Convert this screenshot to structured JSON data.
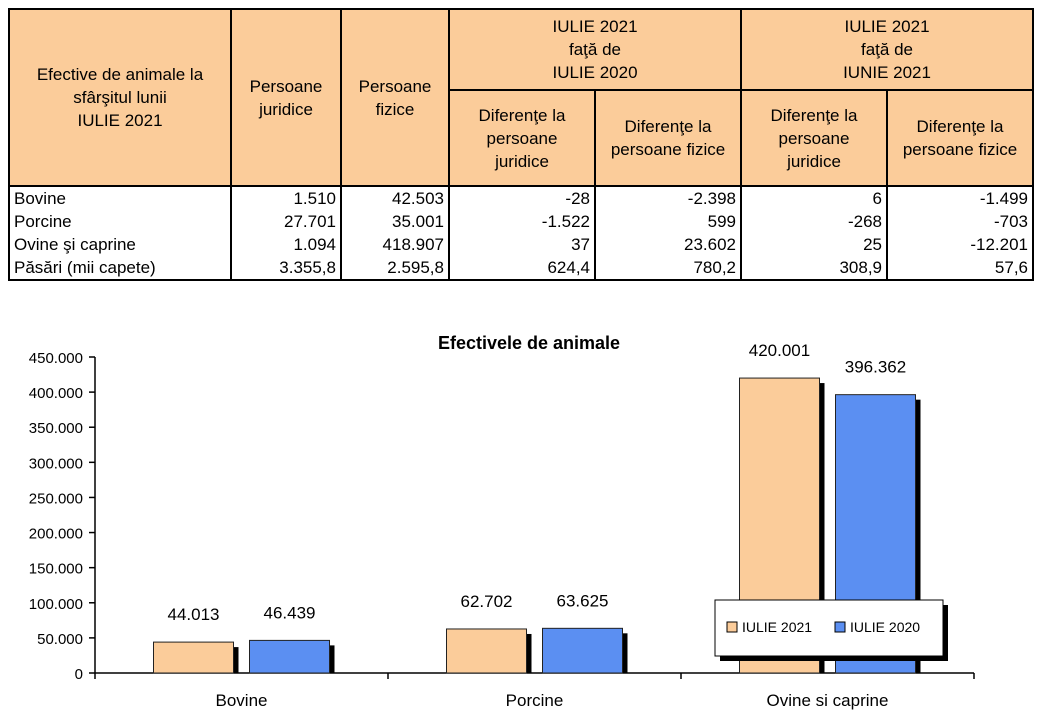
{
  "table": {
    "headers": {
      "row_label": "Efective de animale la\nsfârşitul lunii\nIULIE 2021",
      "persoane_juridice": "Persoane\njuridice",
      "persoane_fizice": "Persoane\nfizice",
      "group1": "IULIE 2021\nfaţă de\nIULIE 2020",
      "group2": "IULIE 2021\nfaţă de\nIUNIE 2021",
      "g1_juridice": "Diferenţe la\npersoane\njuridice",
      "g1_fizice": "Diferenţe la\npersoane fizice",
      "g2_juridice": "Diferenţe la\npersoane\njuridice",
      "g2_fizice": "Diferenţe la\npersoane fizice"
    },
    "rows": [
      {
        "label": "Bovine",
        "values": [
          "1.510",
          "42.503",
          "-28",
          "-2.398",
          "6",
          "-1.499"
        ]
      },
      {
        "label": "Porcine",
        "values": [
          "27.701",
          "35.001",
          "-1.522",
          "599",
          "-268",
          "-703"
        ]
      },
      {
        "label": "Ovine şi caprine",
        "values": [
          "1.094",
          "418.907",
          "37",
          "23.602",
          "25",
          "-12.201"
        ]
      },
      {
        "label": "Păsări (mii capete)",
        "values": [
          "3.355,8",
          "2.595,8",
          "624,4",
          "780,2",
          "308,9",
          "57,6"
        ]
      }
    ]
  },
  "chart_data": {
    "type": "bar",
    "title": "Efectivele de animale",
    "categories": [
      "Bovine",
      "Porcine",
      "Ovine si caprine"
    ],
    "series": [
      {
        "name": "IULIE 2021",
        "values": [
          44013,
          62702,
          420001
        ],
        "labels": [
          "44.013",
          "62.702",
          "420.001"
        ],
        "color": "#fbcc9a"
      },
      {
        "name": "IULIE 2020",
        "values": [
          46439,
          63625,
          396362
        ],
        "labels": [
          "46.439",
          "63.625",
          "396.362"
        ],
        "color": "#5b8ff2"
      }
    ],
    "ylim": [
      0,
      450000
    ],
    "yticks": [
      0,
      50000,
      100000,
      150000,
      200000,
      250000,
      300000,
      350000,
      400000,
      450000
    ],
    "ytick_labels": [
      "0",
      "50.000",
      "100.000",
      "150.000",
      "200.000",
      "250.000",
      "300.000",
      "350.000",
      "400.000",
      "450.000"
    ],
    "xlabel": "",
    "ylabel": "",
    "legend": "right, lower half",
    "grid": false
  }
}
